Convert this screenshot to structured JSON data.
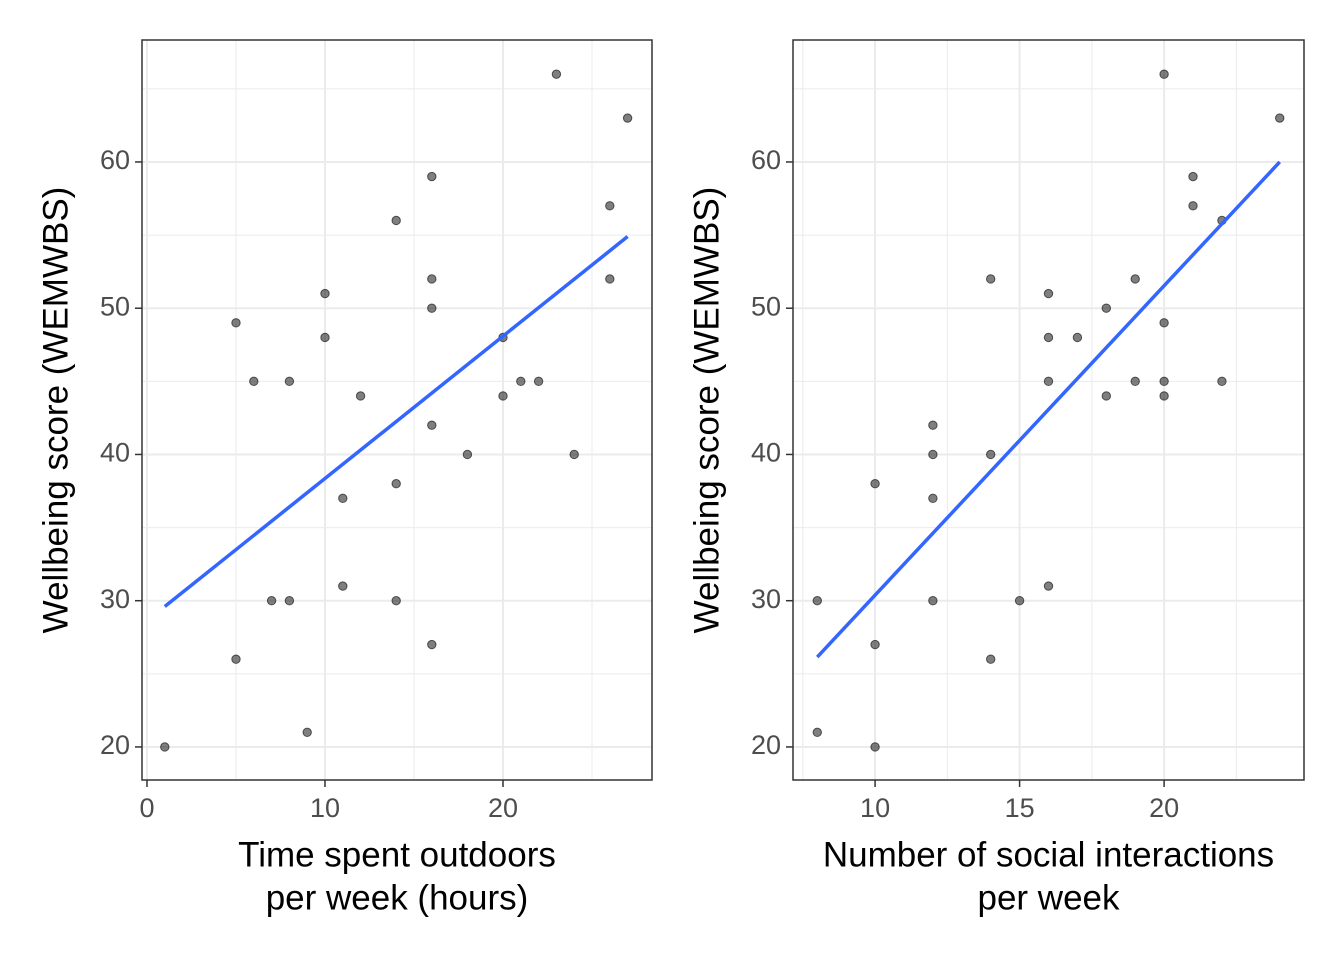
{
  "chart_data": [
    {
      "type": "scatter",
      "xlabel": [
        "Time spent outdoors",
        "per week (hours)"
      ],
      "ylabel": "Wellbeing score (WEMWBS)",
      "xlim": [
        -0.28,
        28.37
      ],
      "ylim": [
        17.74,
        68.34
      ],
      "xticks": [
        0,
        10,
        20
      ],
      "yticks": [
        20,
        30,
        40,
        50,
        60
      ],
      "grid": true,
      "series": [
        {
          "type": "scatter",
          "color": "#000000",
          "x": [
            1,
            5,
            5,
            6,
            7,
            8,
            8,
            9,
            10,
            10,
            11,
            11,
            12,
            14,
            14,
            14,
            16,
            16,
            16,
            16,
            16,
            18,
            20,
            20,
            21,
            22,
            23,
            24,
            26,
            26,
            27
          ],
          "y": [
            20,
            49,
            26,
            45,
            30,
            45,
            30,
            21,
            51,
            48,
            37,
            31,
            44,
            56,
            38,
            30,
            59,
            52,
            50,
            42,
            27,
            40,
            48,
            44,
            45,
            45,
            66,
            40,
            57,
            52,
            63
          ]
        },
        {
          "type": "line",
          "color": "#3366ff",
          "x": [
            1,
            27
          ],
          "y": [
            29.6,
            54.9
          ]
        }
      ]
    },
    {
      "type": "scatter",
      "xlabel": [
        "Number of social interactions",
        "per week"
      ],
      "ylabel": "Wellbeing score (WEMWBS)",
      "xlim": [
        7.16,
        24.84
      ],
      "ylim": [
        17.74,
        68.34
      ],
      "xticks": [
        10,
        15,
        20
      ],
      "yticks": [
        20,
        30,
        40,
        50,
        60
      ],
      "grid": true,
      "series": [
        {
          "type": "scatter",
          "color": "#000000",
          "x": [
            8,
            8,
            10,
            10,
            10,
            12,
            12,
            12,
            12,
            14,
            14,
            14,
            15,
            16,
            16,
            16,
            16,
            17,
            18,
            18,
            19,
            19,
            20,
            20,
            20,
            20,
            21,
            21,
            22,
            22,
            24
          ],
          "y": [
            30,
            21,
            38,
            27,
            20,
            42,
            40,
            37,
            30,
            52,
            40,
            26,
            30,
            51,
            48,
            45,
            31,
            48,
            50,
            44,
            52,
            45,
            66,
            49,
            45,
            44,
            59,
            57,
            56,
            45,
            63
          ]
        },
        {
          "type": "line",
          "color": "#3366ff",
          "x": [
            8,
            24
          ],
          "y": [
            26.15,
            60
          ]
        }
      ]
    }
  ]
}
